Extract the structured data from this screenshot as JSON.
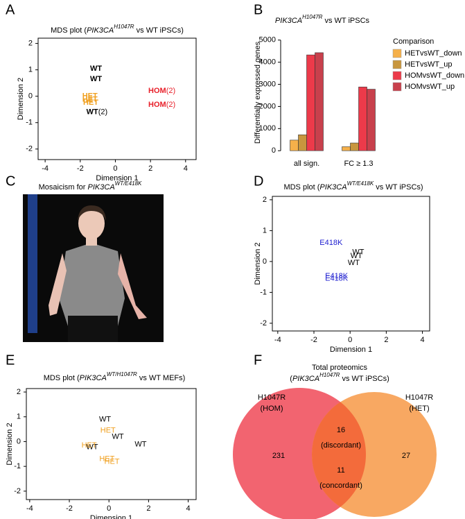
{
  "chart_data": [
    {
      "panel": "A",
      "type": "scatter",
      "title": [
        [
          {
            "text": "MDS plot ("
          },
          {
            "text": "PIK3CA",
            "italic": true
          },
          {
            "text": "H1047R",
            "italic": true,
            "sup": true
          },
          {
            "text": " vs WT iPSCs)"
          }
        ]
      ],
      "xlabel": "Dimension 1",
      "ylabel": "Dimension 2",
      "xlim": [
        -4.4,
        4.6
      ],
      "ylim": [
        -2.4,
        2.2
      ],
      "xticks": [
        -4,
        -2,
        0,
        2,
        4
      ],
      "yticks": [
        -2,
        -1,
        0,
        1,
        2
      ],
      "bold_labels": true,
      "series": [
        {
          "name": "WT",
          "color": "#000000",
          "x": [
            -1.1,
            -1.1,
            -1.05
          ],
          "y": [
            1.05,
            0.65,
            -0.6
          ],
          "counts": [
            null,
            null,
            "(2)"
          ]
        },
        {
          "name": "HET",
          "color": "#f0a020",
          "x": [
            -1.45,
            -1.45,
            -1.4
          ],
          "y": [
            0.0,
            -0.12,
            -0.25
          ],
          "counts": [
            null,
            null,
            null
          ]
        },
        {
          "name": "HOM",
          "color": "#e8202a",
          "x": [
            2.65,
            2.65
          ],
          "y": [
            0.2,
            -0.32
          ],
          "counts": [
            "(2)",
            "(2)"
          ]
        }
      ]
    },
    {
      "panel": "B",
      "type": "bar",
      "title": [
        [
          {
            "text": "PIK3CA",
            "italic": true
          },
          {
            "text": "H1047R",
            "italic": true,
            "sup": true
          },
          {
            "text": " vs WT iPSCs"
          }
        ]
      ],
      "ylabel": "Differentially expressed genes",
      "categories": [
        "all sign.",
        "FC ≥ 1.3"
      ],
      "ylim": [
        -150,
        5400
      ],
      "yticks": [
        0,
        1000,
        2000,
        3000,
        4000,
        5000
      ],
      "legend_title": "Comparison",
      "legend": "right",
      "series": [
        {
          "name": "HETvsWT_down",
          "color": "#f5b04a",
          "values": [
            480,
            180
          ]
        },
        {
          "name": "HETvsWT_up",
          "color": "#c8963e",
          "values": [
            720,
            350
          ]
        },
        {
          "name": "HOMvsWT_down",
          "color": "#ec3a4a",
          "values": [
            4330,
            2880
          ]
        },
        {
          "name": "HOMvsWT_up",
          "color": "#c8404c",
          "values": [
            4430,
            2780
          ]
        }
      ]
    },
    {
      "panel": "C",
      "type": "image",
      "title": [
        [
          {
            "text": "Mosaicism for "
          },
          {
            "text": "PIK3CA",
            "italic": true
          },
          {
            "text": "WT/E418K",
            "italic": true,
            "sup": true
          }
        ]
      ]
    },
    {
      "panel": "D",
      "type": "scatter",
      "title": [
        [
          {
            "text": "MDS plot ("
          },
          {
            "text": "PIK3CA",
            "italic": true
          },
          {
            "text": "WT/E418K",
            "italic": true,
            "sup": true
          },
          {
            "text": " vs WT iPSCs)"
          }
        ]
      ],
      "xlabel": "Dimension 1",
      "ylabel": "Dimension 2",
      "xlim": [
        -4.3,
        4.4
      ],
      "ylim": [
        -2.25,
        2.11
      ],
      "xticks": [
        -4,
        -2,
        0,
        2,
        4
      ],
      "yticks": [
        -2,
        -1,
        0,
        1,
        2
      ],
      "bold_labels": false,
      "series": [
        {
          "name": "WT",
          "color": "#000000",
          "x": [
            0.45,
            0.35,
            0.2
          ],
          "y": [
            0.3,
            0.18,
            -0.05
          ],
          "counts": [
            null,
            null,
            null
          ]
        },
        {
          "name": "E418K",
          "color": "#2020d0",
          "x": [
            -1.05,
            -0.75,
            -0.75
          ],
          "y": [
            0.6,
            -0.47,
            -0.55
          ],
          "counts": [
            null,
            null,
            null
          ]
        }
      ]
    },
    {
      "panel": "E",
      "type": "scatter",
      "title": [
        [
          {
            "text": "MDS plot ("
          },
          {
            "text": "PIK3CA",
            "italic": true
          },
          {
            "text": "WT/H1047R",
            "italic": true,
            "sup": true
          },
          {
            "text": " vs WT MEFs)"
          }
        ]
      ],
      "xlabel": "Dimension 1",
      "ylabel": "Dimension 2",
      "xlim": [
        -4.17,
        4.4
      ],
      "ylim": [
        -2.34,
        2.14
      ],
      "xticks": [
        -4,
        -2,
        0,
        2,
        4
      ],
      "yticks": [
        -2,
        -1,
        0,
        1,
        2
      ],
      "bold_labels": false,
      "series": [
        {
          "name": "WT",
          "color": "#000000",
          "x": [
            -0.2,
            0.45,
            1.6,
            -0.85
          ],
          "y": [
            0.9,
            0.2,
            -0.12,
            -0.22
          ],
          "counts": [
            null,
            null,
            null,
            null
          ]
        },
        {
          "name": "HET",
          "color": "#f0a020",
          "x": [
            -0.05,
            -1.0,
            -0.1,
            0.15
          ],
          "y": [
            0.45,
            -0.15,
            -0.7,
            -0.82
          ],
          "counts": [
            null,
            null,
            null,
            null
          ]
        }
      ]
    },
    {
      "panel": "F",
      "type": "venn",
      "title": [
        [
          {
            "text": "Total proteomics"
          }
        ],
        [
          {
            "text": "("
          },
          {
            "text": "PIK3CA",
            "italic": true
          },
          {
            "text": "H1047R",
            "italic": true,
            "sup": true
          },
          {
            "text": " vs WT iPSCs)"
          }
        ]
      ],
      "sets": [
        {
          "name": "H1047R",
          "group": "(HOM)",
          "color": "#f26470",
          "text_color": "#e82030",
          "only": 231
        },
        {
          "name": "H1047R",
          "group": "(HET)",
          "color": "#f8a862",
          "text_color": "#f07a20",
          "only": 27
        }
      ],
      "overlap_color": "#f36b3b",
      "overlap": [
        {
          "value": 16,
          "label": "(discordant)"
        },
        {
          "value": 11,
          "label": "(concordant)"
        }
      ]
    }
  ]
}
